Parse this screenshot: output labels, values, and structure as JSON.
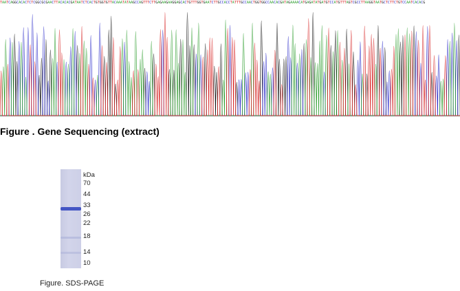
{
  "sequencing": {
    "sequence": "TAATCAGGCACACTCTCGGCGCGAACTTACACACGATAATCTCACTGTGGTGTTACAAATATAAGCCAGTTTCTTGAGAAGAAGGAGCACTGTTTGGTGAATCTTGCCACCTATTTGCCAACTGGTGGCCAACACGATAGAAAACATGAGATATGATGTCCATGTTTAGTCGCCTTAAGGTAATGCTCTTCTGTCCAATCACACG",
    "base_colors": {
      "A": "#2e9e2e",
      "C": "#2727c8",
      "G": "#111111",
      "T": "#d62020"
    },
    "caption": "Figure . Gene Sequencing (extract)"
  },
  "gel": {
    "unit_label": "kDa",
    "markers": [
      "70",
      "44",
      "33",
      "26",
      "22",
      "18",
      "14",
      "10"
    ],
    "band_color": "#3c4fc2",
    "caption": "Figure. SDS-PAGE"
  }
}
